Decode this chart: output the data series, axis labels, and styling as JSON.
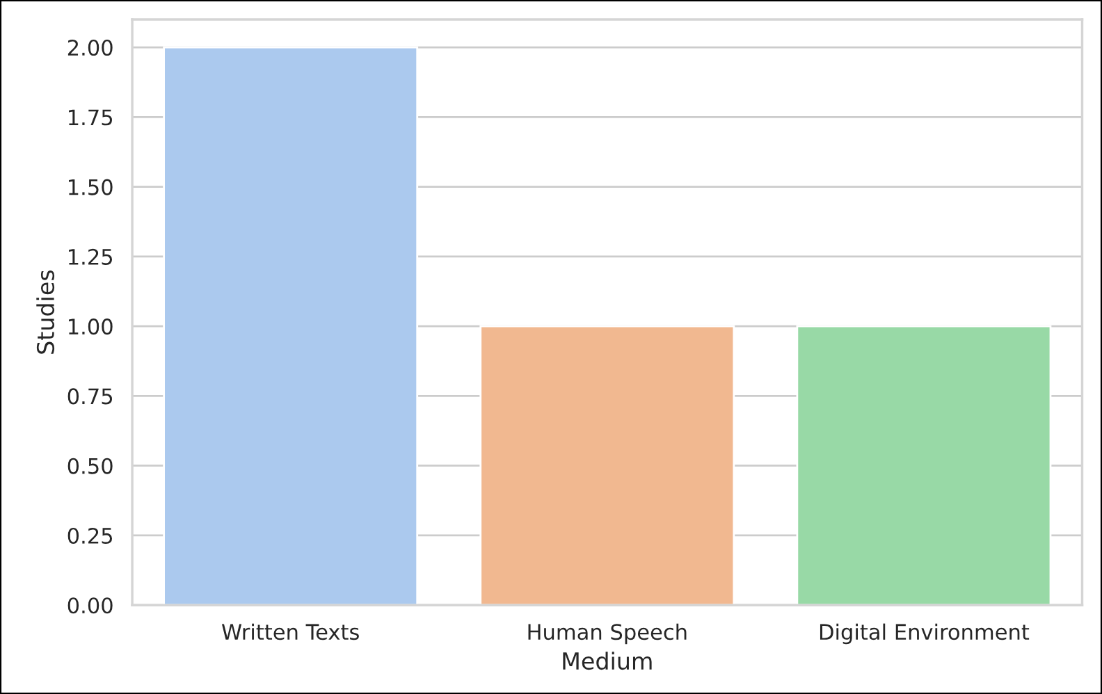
{
  "chart_data": {
    "type": "bar",
    "xlabel": "Medium",
    "ylabel": "Studies",
    "categories": [
      "Written Texts",
      "Human Speech",
      "Digital Environment"
    ],
    "values": [
      2,
      1,
      1
    ],
    "colors": [
      "#abc9ee",
      "#f1b890",
      "#98d9a6"
    ],
    "ylim": [
      0,
      2.1
    ],
    "yticks": [
      {
        "value": 0,
        "label": "0.00"
      },
      {
        "value": 0.25,
        "label": "0.25"
      },
      {
        "value": 0.5,
        "label": "0.50"
      },
      {
        "value": 0.75,
        "label": "0.75"
      },
      {
        "value": 1,
        "label": "1.00"
      },
      {
        "value": 1.25,
        "label": "1.25"
      },
      {
        "value": 1.5,
        "label": "1.50"
      },
      {
        "value": 1.75,
        "label": "1.75"
      },
      {
        "value": 2,
        "label": "2.00"
      }
    ],
    "grid": "y"
  }
}
